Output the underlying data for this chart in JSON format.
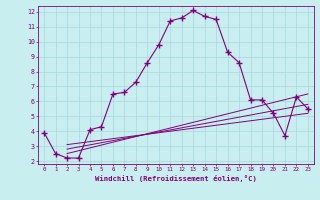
{
  "xlabel": "Windchill (Refroidissement éolien,°C)",
  "background_color": "#c8eef0",
  "line_color": "#800080",
  "grid_color": "#a8d8dc",
  "xlim": [
    -0.5,
    23.5
  ],
  "ylim": [
    1.8,
    12.4
  ],
  "yticks": [
    2,
    3,
    4,
    5,
    6,
    7,
    8,
    9,
    10,
    11,
    12
  ],
  "xticks": [
    0,
    1,
    2,
    3,
    4,
    5,
    6,
    7,
    8,
    9,
    10,
    11,
    12,
    13,
    14,
    15,
    16,
    17,
    18,
    19,
    20,
    21,
    22,
    23
  ],
  "series1_x": [
    0,
    1,
    2,
    3,
    4,
    5,
    6,
    7,
    8,
    9,
    10,
    11,
    12,
    13,
    14,
    15,
    16,
    17,
    18,
    19,
    20,
    21,
    22,
    23
  ],
  "series1_y": [
    3.9,
    2.5,
    2.2,
    2.2,
    4.1,
    4.3,
    6.5,
    6.6,
    7.3,
    8.6,
    9.8,
    11.4,
    11.6,
    12.1,
    11.7,
    11.5,
    9.3,
    8.6,
    6.1,
    6.1,
    5.2,
    3.7,
    6.3,
    5.5
  ],
  "series2_x": [
    2,
    23
  ],
  "series2_y": [
    2.5,
    6.5
  ],
  "series3_x": [
    2,
    23
  ],
  "series3_y": [
    2.8,
    5.8
  ],
  "series4_x": [
    2,
    23
  ],
  "series4_y": [
    3.1,
    5.2
  ]
}
